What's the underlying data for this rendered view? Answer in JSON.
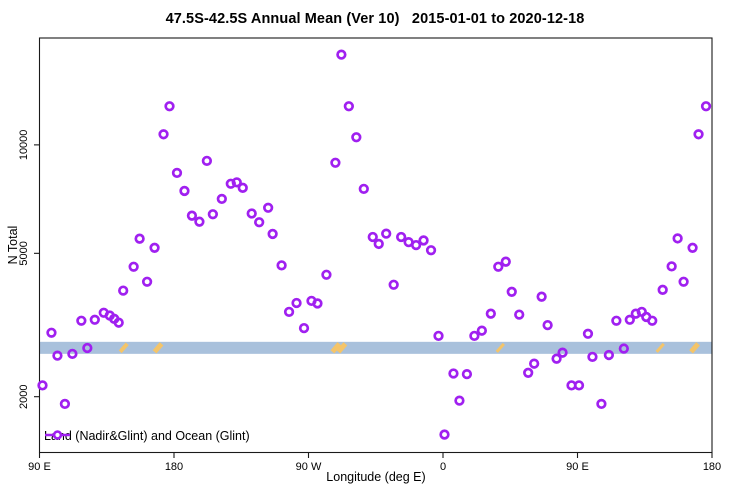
{
  "chart_data": {
    "type": "scatter",
    "title": "47.5S-42.5S Annual Mean (Ver 10)   2015-01-01 to 2020-12-18",
    "xlabel": "Longitude (deg E)",
    "ylabel": "N Total",
    "grid": false,
    "legend_position": "bottom-left-inside",
    "legend": [
      "Land (Nadir&Glint) and Ocean (Glint)"
    ],
    "marker": {
      "shape": "open-circle",
      "color": "#a020f0"
    },
    "x_axis": {
      "range": [
        90,
        540
      ],
      "ticks": [
        90,
        180,
        270,
        360,
        450,
        540
      ],
      "tick_labels": [
        "90 E",
        "180",
        "90 W",
        "0",
        "90 E",
        "180"
      ]
    },
    "y_axis": {
      "scale": "log",
      "range": [
        1400,
        19800
      ],
      "ticks": [
        2000,
        5000,
        10000
      ],
      "tick_labels": [
        "2000",
        "5000",
        "10000"
      ]
    },
    "reference_band": {
      "y_min": 2630,
      "y_max": 2840,
      "color": "#a9c1dc"
    },
    "band_marks": {
      "color": "#f4c469",
      "slashes": [
        {
          "x": 146,
          "w": 4
        },
        {
          "x": 169,
          "w": 5
        },
        {
          "x": 288,
          "w": 5
        },
        {
          "x": 292,
          "w": 5
        },
        {
          "x": 398,
          "w": 3
        },
        {
          "x": 505,
          "w": 3
        },
        {
          "x": 528,
          "w": 5
        }
      ]
    },
    "series": [
      {
        "name": "Land (Nadir&Glint) and Ocean (Glint)",
        "points": [
          [
            92,
            2150
          ],
          [
            98,
            3010
          ],
          [
            102,
            2600
          ],
          [
            107,
            1910
          ],
          [
            112,
            2630
          ],
          [
            118,
            3250
          ],
          [
            122,
            2730
          ],
          [
            127,
            3270
          ],
          [
            133,
            3420
          ],
          [
            137,
            3360
          ],
          [
            140,
            3290
          ],
          [
            143,
            3210
          ],
          [
            146,
            3940
          ],
          [
            153,
            4590
          ],
          [
            157,
            5490
          ],
          [
            162,
            4170
          ],
          [
            167,
            5180
          ],
          [
            173,
            10700
          ],
          [
            177,
            12800
          ],
          [
            182,
            8360
          ],
          [
            187,
            7450
          ],
          [
            192,
            6360
          ],
          [
            197,
            6120
          ],
          [
            202,
            9030
          ],
          [
            206,
            6420
          ],
          [
            212,
            7080
          ],
          [
            218,
            7800
          ],
          [
            222,
            7870
          ],
          [
            226,
            7600
          ],
          [
            232,
            6450
          ],
          [
            237,
            6100
          ],
          [
            243,
            6690
          ],
          [
            246,
            5660
          ],
          [
            252,
            4630
          ],
          [
            257,
            3440
          ],
          [
            262,
            3640
          ],
          [
            267,
            3100
          ],
          [
            272,
            3690
          ],
          [
            276,
            3630
          ],
          [
            282,
            4360
          ],
          [
            288,
            8920
          ],
          [
            292,
            17800
          ],
          [
            297,
            12800
          ],
          [
            302,
            10500
          ],
          [
            307,
            7550
          ],
          [
            313,
            5550
          ],
          [
            317,
            5310
          ],
          [
            322,
            5670
          ],
          [
            327,
            4090
          ],
          [
            332,
            5550
          ],
          [
            337,
            5370
          ],
          [
            342,
            5270
          ],
          [
            347,
            5430
          ],
          [
            352,
            5100
          ],
          [
            357,
            2950
          ],
          [
            361,
            1570
          ],
          [
            367,
            2320
          ],
          [
            371,
            1950
          ],
          [
            376,
            2310
          ],
          [
            381,
            2950
          ],
          [
            386,
            3050
          ],
          [
            392,
            3400
          ],
          [
            397,
            4590
          ],
          [
            402,
            4740
          ],
          [
            406,
            3910
          ],
          [
            411,
            3380
          ],
          [
            417,
            2330
          ],
          [
            421,
            2470
          ],
          [
            426,
            3790
          ],
          [
            430,
            3160
          ],
          [
            436,
            2550
          ],
          [
            440,
            2650
          ],
          [
            446,
            2150
          ],
          [
            451,
            2150
          ],
          [
            457,
            2990
          ],
          [
            460,
            2580
          ],
          [
            466,
            1910
          ],
          [
            471,
            2610
          ],
          [
            476,
            3250
          ],
          [
            481,
            2720
          ],
          [
            485,
            3270
          ],
          [
            489,
            3400
          ],
          [
            493,
            3440
          ],
          [
            496,
            3330
          ],
          [
            500,
            3250
          ],
          [
            507,
            3960
          ],
          [
            513,
            4600
          ],
          [
            517,
            5500
          ],
          [
            521,
            4170
          ],
          [
            527,
            5180
          ],
          [
            531,
            10700
          ],
          [
            536,
            12800
          ]
        ]
      }
    ]
  }
}
